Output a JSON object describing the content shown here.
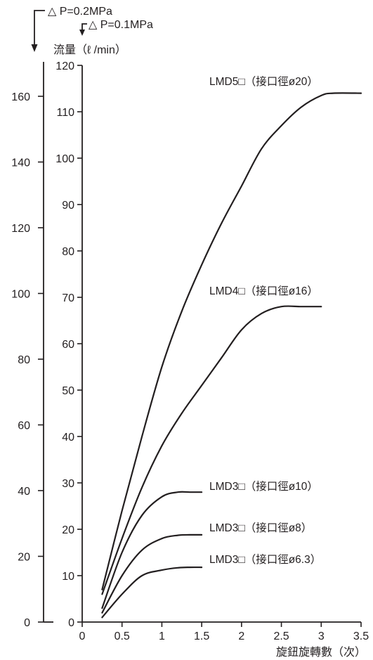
{
  "chart_data": {
    "type": "line",
    "xlabel": "旋鈕旋轉數（次）",
    "ylabel": "流量（ℓ /min）",
    "xlim": [
      0,
      3.5
    ],
    "x_ticks": [
      "0",
      "0.5",
      "1",
      "1.5",
      "2",
      "2.5",
      "3",
      "3.5"
    ],
    "y_axes": [
      {
        "name": "△ P=0.1MPa",
        "ylim": [
          0,
          120
        ],
        "ticks": [
          "0",
          "10",
          "20",
          "30",
          "40",
          "50",
          "60",
          "70",
          "80",
          "90",
          "100",
          "110",
          "120"
        ]
      },
      {
        "name": "△ P=0.2MPa",
        "ylim": [
          0,
          160
        ],
        "ticks": [
          "0",
          "20",
          "40",
          "60",
          "80",
          "100",
          "120",
          "140",
          "160"
        ]
      }
    ],
    "grid": false,
    "series": [
      {
        "name": "LMD5□（接口徑ø20）",
        "x": [
          0.25,
          0.5,
          0.75,
          1.0,
          1.25,
          1.5,
          1.75,
          2.0,
          2.25,
          2.5,
          2.75,
          3.0,
          3.15,
          3.5
        ],
        "y": [
          7,
          24,
          40,
          55,
          67,
          77,
          86,
          94,
          102,
          107,
          111,
          113.5,
          114,
          114
        ]
      },
      {
        "name": "LMD4□（接口徑ø16）",
        "x": [
          0.25,
          0.5,
          0.75,
          1.0,
          1.25,
          1.5,
          1.75,
          2.0,
          2.25,
          2.5,
          2.75,
          3.0
        ],
        "y": [
          6,
          18,
          29,
          38,
          45,
          51,
          57,
          63,
          66.5,
          68,
          68,
          68
        ]
      },
      {
        "name": "LMD3□（接口徑ø10）",
        "x": [
          0.25,
          0.5,
          0.75,
          1.0,
          1.2,
          1.35,
          1.5
        ],
        "y": [
          3,
          15,
          23,
          27,
          28,
          28,
          28
        ]
      },
      {
        "name": "LMD3□（接口徑ø8）",
        "x": [
          0.25,
          0.5,
          0.75,
          1.0,
          1.2,
          1.35,
          1.5
        ],
        "y": [
          2,
          10,
          15.5,
          18,
          18.7,
          18.8,
          18.8
        ]
      },
      {
        "name": "LMD3□（接口徑ø6.3）",
        "x": [
          0.25,
          0.5,
          0.75,
          1.0,
          1.2,
          1.35,
          1.5
        ],
        "y": [
          1,
          6,
          10,
          11.2,
          11.7,
          11.8,
          11.8
        ]
      }
    ]
  }
}
